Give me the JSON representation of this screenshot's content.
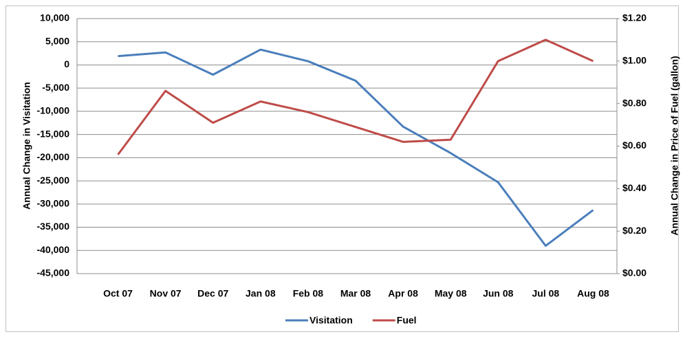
{
  "chart_data": {
    "type": "line",
    "categories": [
      "Oct 07",
      "Nov 07",
      "Dec 07",
      "Jan 08",
      "Feb 08",
      "Mar 08",
      "Apr 08",
      "May 08",
      "Jun 08",
      "Jul 08",
      "Aug 08"
    ],
    "y_label": "Annual Change in Visitation",
    "y2_label": "Annual Change in Price of Fuel (gallon)",
    "ylim": [
      -45000,
      10000
    ],
    "yticks": [
      {
        "value": -45000,
        "label": "-45,000"
      },
      {
        "value": -40000,
        "label": "-40,000"
      },
      {
        "value": -35000,
        "label": "-35,000"
      },
      {
        "value": -30000,
        "label": "-30,000"
      },
      {
        "value": -25000,
        "label": "-25,000"
      },
      {
        "value": -20000,
        "label": "-20,000"
      },
      {
        "value": -15000,
        "label": "-15,000"
      },
      {
        "value": -10000,
        "label": "-10,000"
      },
      {
        "value": -5000,
        "label": "-5,000"
      },
      0,
      {
        "value": 5000,
        "label": "5,000"
      },
      {
        "value": 10000,
        "label": "10,000"
      }
    ],
    "y2lim": [
      0,
      1.2
    ],
    "y2ticks": [
      {
        "value": 0,
        "label": "$0.00"
      },
      {
        "value": 0.2,
        "label": "$0.20"
      },
      {
        "value": 0.4,
        "label": "$0.40"
      },
      {
        "value": 0.6,
        "label": "$0.60"
      },
      {
        "value": 0.8,
        "label": "$0.80"
      },
      {
        "value": 1.0,
        "label": "$1.00"
      },
      {
        "value": 1.2,
        "label": "$1.20"
      }
    ],
    "grid": true,
    "legend": "bottom",
    "series": [
      {
        "name": "Visitation",
        "color": "#4a7ebb",
        "values": [
          1900,
          2700,
          -2100,
          3300,
          800,
          -3400,
          -13300,
          -19000,
          -25300,
          -39000,
          -31300
        ]
      },
      {
        "name": "Fuel",
        "color": "#be4b48",
        "axis": "y2",
        "values": [
          0.56,
          0.86,
          0.71,
          0.81,
          0.76,
          0.69,
          0.62,
          0.63,
          1.0,
          1.1,
          1.0
        ]
      }
    ]
  }
}
